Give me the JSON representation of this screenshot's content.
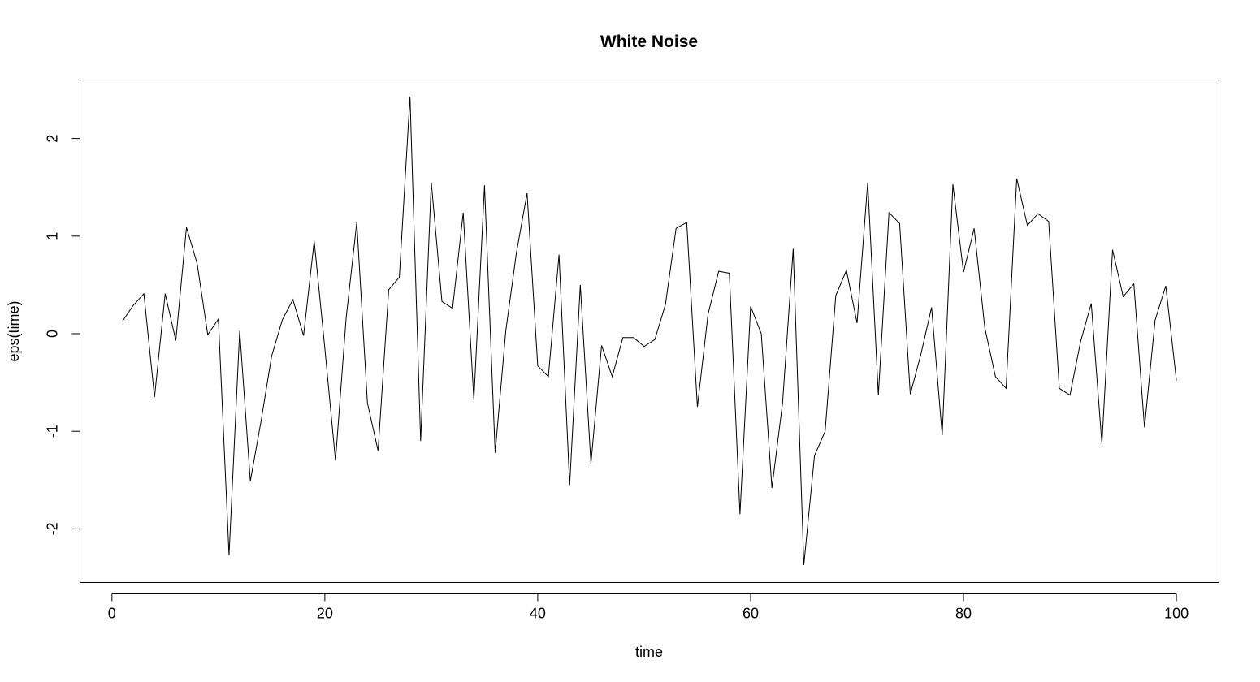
{
  "chart_data": {
    "type": "line",
    "title": "White Noise",
    "xlabel": "time",
    "ylabel": "eps(time)",
    "xlim": [
      -3,
      104
    ],
    "ylim": [
      -2.55,
      2.6
    ],
    "xticks": [
      0,
      20,
      40,
      60,
      80,
      100
    ],
    "yticks": [
      -2,
      -1,
      0,
      1,
      2
    ],
    "grid": false,
    "color": "#000000",
    "series": [
      {
        "x": [
          1,
          2,
          3,
          4,
          5,
          6,
          7,
          8,
          9,
          10,
          11,
          12,
          13,
          14,
          15,
          16,
          17,
          18,
          19,
          20,
          21,
          22,
          23,
          24,
          25,
          26,
          27,
          28,
          29,
          30,
          31,
          32,
          33,
          34,
          35,
          36,
          37,
          38,
          39,
          40,
          41,
          42,
          43,
          44,
          45,
          46,
          47,
          48,
          49,
          50,
          51,
          52,
          53,
          54,
          55,
          56,
          57,
          58,
          59,
          60,
          61,
          62,
          63,
          64,
          65,
          66,
          67,
          68,
          69,
          70,
          71,
          72,
          73,
          74,
          75,
          76,
          77,
          78,
          79,
          80,
          81,
          82,
          83,
          84,
          85,
          86,
          87,
          88,
          89,
          90,
          91,
          92,
          93,
          94,
          95,
          96,
          97,
          98,
          99,
          100
        ],
        "values": [
          0.13,
          0.29,
          0.41,
          -0.65,
          0.41,
          -0.07,
          1.09,
          0.72,
          -0.01,
          0.15,
          -2.27,
          0.03,
          -1.51,
          -0.9,
          -0.23,
          0.14,
          0.35,
          -0.02,
          0.95,
          -0.15,
          -1.3,
          0.16,
          1.14,
          -0.71,
          -1.2,
          0.45,
          0.58,
          2.43,
          -1.1,
          1.55,
          0.33,
          0.26,
          1.24,
          -0.68,
          1.52,
          -1.22,
          0.03,
          0.83,
          1.44,
          -0.33,
          -0.44,
          0.81,
          -1.55,
          0.5,
          -1.33,
          -0.12,
          -0.44,
          -0.04,
          -0.04,
          -0.13,
          -0.06,
          0.3,
          1.08,
          1.14,
          -0.75,
          0.2,
          0.64,
          0.62,
          -1.85,
          0.28,
          0.0,
          -1.58,
          -0.71,
          0.87,
          -2.37,
          -1.25,
          -1.0,
          0.39,
          0.65,
          0.11,
          1.55,
          -0.63,
          1.24,
          1.13,
          -0.62,
          -0.21,
          0.27,
          -1.04,
          1.53,
          0.63,
          1.08,
          0.06,
          -0.44,
          -0.56,
          1.59,
          1.11,
          1.23,
          1.15,
          -0.56,
          -0.63,
          -0.08,
          0.31,
          -1.13,
          0.86,
          0.38,
          0.51,
          -0.96,
          0.14,
          0.49,
          -0.48
        ]
      }
    ]
  }
}
